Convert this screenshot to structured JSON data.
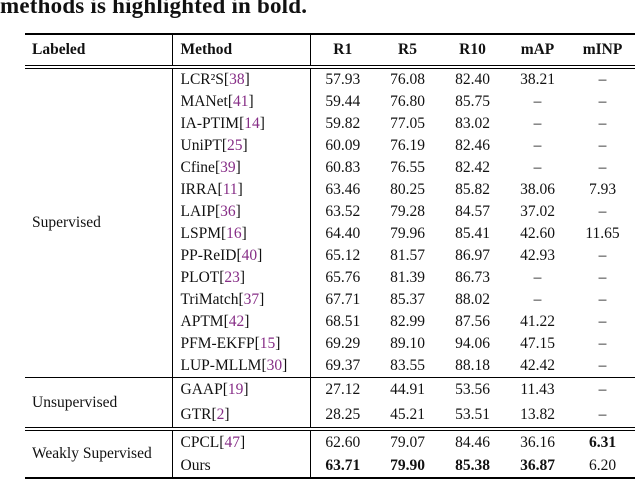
{
  "caption": "methods is highlighted in bold.",
  "colors": {
    "citation": "#862d86",
    "text": "#111111"
  },
  "cite_format": {
    "open": "[",
    "close": "]"
  },
  "table": {
    "headers": [
      "Labeled",
      "Method",
      "R1",
      "R5",
      "R10",
      "mAP",
      "mINP"
    ],
    "sections": [
      {
        "label": "Supervised",
        "rows": [
          {
            "method": "LCR²S",
            "cite": "38",
            "values": [
              "57.93",
              "76.08",
              "82.40",
              "38.21",
              "–"
            ],
            "bold": [
              false,
              false,
              false,
              false,
              false
            ]
          },
          {
            "method": "MANet",
            "cite": "41",
            "values": [
              "59.44",
              "76.80",
              "85.75",
              "–",
              "–"
            ],
            "bold": [
              false,
              false,
              false,
              false,
              false
            ]
          },
          {
            "method": "IA-PTIM",
            "cite": "14",
            "values": [
              "59.82",
              "77.05",
              "83.02",
              "–",
              "–"
            ],
            "bold": [
              false,
              false,
              false,
              false,
              false
            ]
          },
          {
            "method": "UniPT",
            "cite": "25",
            "values": [
              "60.09",
              "76.19",
              "82.46",
              "–",
              "–"
            ],
            "bold": [
              false,
              false,
              false,
              false,
              false
            ]
          },
          {
            "method": "Cfine",
            "cite": "39",
            "values": [
              "60.83",
              "76.55",
              "82.42",
              "–",
              "–"
            ],
            "bold": [
              false,
              false,
              false,
              false,
              false
            ]
          },
          {
            "method": "IRRA",
            "cite": "11",
            "values": [
              "63.46",
              "80.25",
              "85.82",
              "38.06",
              "7.93"
            ],
            "bold": [
              false,
              false,
              false,
              false,
              false
            ]
          },
          {
            "method": "LAIP",
            "cite": "36",
            "values": [
              "63.52",
              "79.28",
              "84.57",
              "37.02",
              "–"
            ],
            "bold": [
              false,
              false,
              false,
              false,
              false
            ]
          },
          {
            "method": "LSPM",
            "cite": "16",
            "values": [
              "64.40",
              "79.96",
              "85.41",
              "42.60",
              "11.65"
            ],
            "bold": [
              false,
              false,
              false,
              false,
              false
            ]
          },
          {
            "method": "PP-ReID",
            "cite": "40",
            "values": [
              "65.12",
              "81.57",
              "86.97",
              "42.93",
              "–"
            ],
            "bold": [
              false,
              false,
              false,
              false,
              false
            ]
          },
          {
            "method": "PLOT",
            "cite": "23",
            "values": [
              "65.76",
              "81.39",
              "86.73",
              "–",
              "–"
            ],
            "bold": [
              false,
              false,
              false,
              false,
              false
            ]
          },
          {
            "method": "TriMatch",
            "cite": "37",
            "values": [
              "67.71",
              "85.37",
              "88.02",
              "–",
              "–"
            ],
            "bold": [
              false,
              false,
              false,
              false,
              false
            ]
          },
          {
            "method": "APTM",
            "cite": "42",
            "values": [
              "68.51",
              "82.99",
              "87.56",
              "41.22",
              "–"
            ],
            "bold": [
              false,
              false,
              false,
              false,
              false
            ]
          },
          {
            "method": "PFM-EKFP",
            "cite": "15",
            "values": [
              "69.29",
              "89.10",
              "94.06",
              "47.15",
              "–"
            ],
            "bold": [
              false,
              false,
              false,
              false,
              false
            ]
          },
          {
            "method": "LUP-MLLM",
            "cite": "30",
            "values": [
              "69.37",
              "83.55",
              "88.18",
              "42.42",
              "–"
            ],
            "bold": [
              false,
              false,
              false,
              false,
              false
            ]
          }
        ]
      },
      {
        "label": "Unsupervised",
        "rows": [
          {
            "method": "GAAP",
            "cite": "19",
            "values": [
              "27.12",
              "44.91",
              "53.56",
              "11.43",
              "–"
            ],
            "bold": [
              false,
              false,
              false,
              false,
              false
            ]
          },
          {
            "method": "GTR",
            "cite": "2",
            "values": [
              "28.25",
              "45.21",
              "53.51",
              "13.82",
              "–"
            ],
            "bold": [
              false,
              false,
              false,
              false,
              false
            ]
          }
        ]
      },
      {
        "label": "Weakly Supervised",
        "rows": [
          {
            "method": "CPCL",
            "cite": "47",
            "values": [
              "62.60",
              "79.07",
              "84.46",
              "36.16",
              "6.31"
            ],
            "bold": [
              false,
              false,
              false,
              false,
              true
            ]
          },
          {
            "method": "Ours",
            "cite": null,
            "values": [
              "63.71",
              "79.90",
              "85.38",
              "36.87",
              "6.20"
            ],
            "bold": [
              true,
              true,
              true,
              true,
              false
            ]
          }
        ]
      }
    ]
  }
}
